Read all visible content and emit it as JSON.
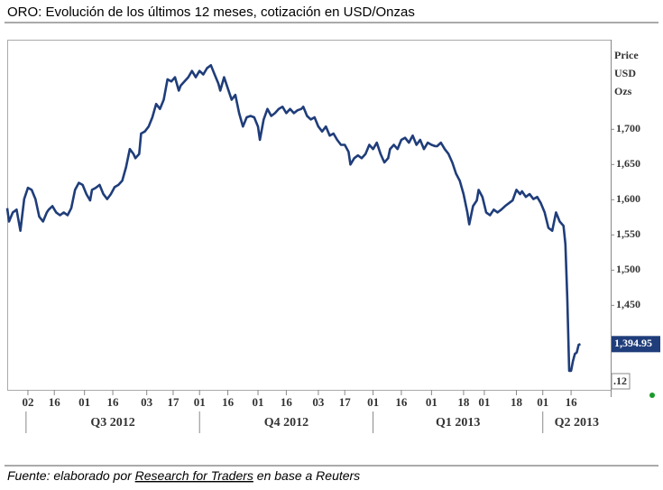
{
  "chart_data": {
    "type": "line",
    "title": "ORO: Evolución de los últimos 12 meses, cotización en USD/Onzas",
    "axis_label": [
      "Price",
      "USD",
      "Ozs"
    ],
    "source": {
      "prefix": "Fuente: elaborado por ",
      "link": "Research for Traders",
      "suffix": " en base a Reuters"
    },
    "color": "#1f3d7a",
    "x": [
      -11,
      -10,
      -8,
      -6,
      -4,
      -2,
      0,
      2,
      4,
      6,
      8,
      10,
      11,
      13,
      15,
      17,
      19,
      21,
      23,
      25,
      27,
      29,
      31,
      33,
      34,
      36,
      38,
      40,
      42,
      44,
      46,
      48,
      50,
      52,
      54,
      56,
      57,
      59,
      60,
      62,
      64,
      66,
      68,
      70,
      72,
      74,
      76,
      78,
      80,
      81,
      83,
      85,
      87,
      89,
      91,
      93,
      95,
      97,
      99,
      101,
      102,
      104,
      106,
      108,
      110,
      112,
      114,
      116,
      118,
      120,
      122,
      123,
      125,
      127,
      129,
      131,
      133,
      135,
      137,
      139,
      141,
      143,
      145,
      146,
      148,
      150,
      152,
      154,
      156,
      158,
      160,
      162,
      164,
      166,
      168,
      170,
      171,
      173,
      175,
      177,
      179,
      181,
      183,
      185,
      187,
      189,
      191,
      192,
      194,
      196,
      198,
      200,
      202,
      204,
      206,
      208,
      210,
      212,
      214,
      216,
      217,
      219,
      221,
      223,
      225,
      227,
      229,
      231,
      233,
      234,
      236,
      238,
      239,
      241,
      243,
      245,
      247,
      249,
      251,
      253,
      255,
      257,
      259,
      261,
      262,
      264,
      266,
      268,
      270,
      272,
      274,
      276,
      278,
      280,
      282,
      284,
      285,
      286,
      287,
      288,
      289,
      290,
      291,
      292,
      293
    ],
    "values": [
      1588,
      1569,
      1582,
      1586,
      1556,
      1601,
      1617,
      1614,
      1601,
      1576,
      1569,
      1582,
      1586,
      1591,
      1582,
      1578,
      1582,
      1578,
      1588,
      1614,
      1624,
      1621,
      1608,
      1599,
      1614,
      1617,
      1621,
      1608,
      1601,
      1608,
      1618,
      1621,
      1627,
      1646,
      1672,
      1665,
      1659,
      1665,
      1694,
      1697,
      1704,
      1717,
      1736,
      1729,
      1742,
      1771,
      1768,
      1774,
      1755,
      1762,
      1768,
      1774,
      1783,
      1774,
      1783,
      1778,
      1787,
      1791,
      1778,
      1765,
      1755,
      1774,
      1758,
      1742,
      1749,
      1723,
      1704,
      1717,
      1719,
      1717,
      1704,
      1685,
      1714,
      1729,
      1719,
      1723,
      1729,
      1732,
      1723,
      1729,
      1723,
      1727,
      1729,
      1732,
      1719,
      1714,
      1717,
      1704,
      1697,
      1704,
      1691,
      1694,
      1685,
      1678,
      1678,
      1668,
      1650,
      1659,
      1663,
      1659,
      1665,
      1678,
      1672,
      1681,
      1665,
      1653,
      1659,
      1672,
      1678,
      1672,
      1685,
      1688,
      1681,
      1691,
      1678,
      1685,
      1672,
      1681,
      1678,
      1676,
      1676,
      1681,
      1672,
      1665,
      1653,
      1637,
      1627,
      1608,
      1582,
      1565,
      1591,
      1599,
      1614,
      1604,
      1582,
      1578,
      1586,
      1582,
      1586,
      1591,
      1595,
      1599,
      1614,
      1608,
      1612,
      1604,
      1608,
      1601,
      1604,
      1595,
      1582,
      1560,
      1556,
      1582,
      1569,
      1563,
      1537,
      1460,
      1357,
      1357,
      1371,
      1381,
      1383,
      1394,
      1394.95
    ],
    "current_price": {
      "value": 1394.95,
      "label": "1,394.95"
    },
    "axis_note": ".12",
    "xlim": [
      -10.5,
      309
    ],
    "ylim": [
      1330,
      1826
    ],
    "yticks": [
      {
        "value": 1450,
        "label": "1,450"
      },
      {
        "value": 1500,
        "label": "1,500"
      },
      {
        "value": 1550,
        "label": "1,550"
      },
      {
        "value": 1600,
        "label": "1,600"
      },
      {
        "value": 1650,
        "label": "1,650"
      },
      {
        "value": 1700,
        "label": "1,700"
      }
    ],
    "xticks": [
      {
        "value": 0,
        "label": "02"
      },
      {
        "value": 14,
        "label": "16"
      },
      {
        "value": 30,
        "label": "01"
      },
      {
        "value": 45,
        "label": "16"
      },
      {
        "value": 63,
        "label": "03"
      },
      {
        "value": 77,
        "label": "17"
      },
      {
        "value": 91,
        "label": "01"
      },
      {
        "value": 106,
        "label": "16"
      },
      {
        "value": 122,
        "label": "01"
      },
      {
        "value": 137,
        "label": "16"
      },
      {
        "value": 154,
        "label": "03"
      },
      {
        "value": 168,
        "label": "17"
      },
      {
        "value": 183,
        "label": "01"
      },
      {
        "value": 198,
        "label": "16"
      },
      {
        "value": 214,
        "label": "01"
      },
      {
        "value": 231,
        "label": "18"
      },
      {
        "value": 242,
        "label": "01"
      },
      {
        "value": 259,
        "label": "18"
      },
      {
        "value": 273,
        "label": "01"
      },
      {
        "value": 288,
        "label": "16"
      }
    ],
    "quarters": [
      {
        "start": -1,
        "label": "Q3 2012"
      },
      {
        "start": 91,
        "label": "Q4 2012"
      },
      {
        "start": 183,
        "label": "Q1 2013"
      },
      {
        "start": 273,
        "label": "Q2 2013"
      }
    ]
  }
}
